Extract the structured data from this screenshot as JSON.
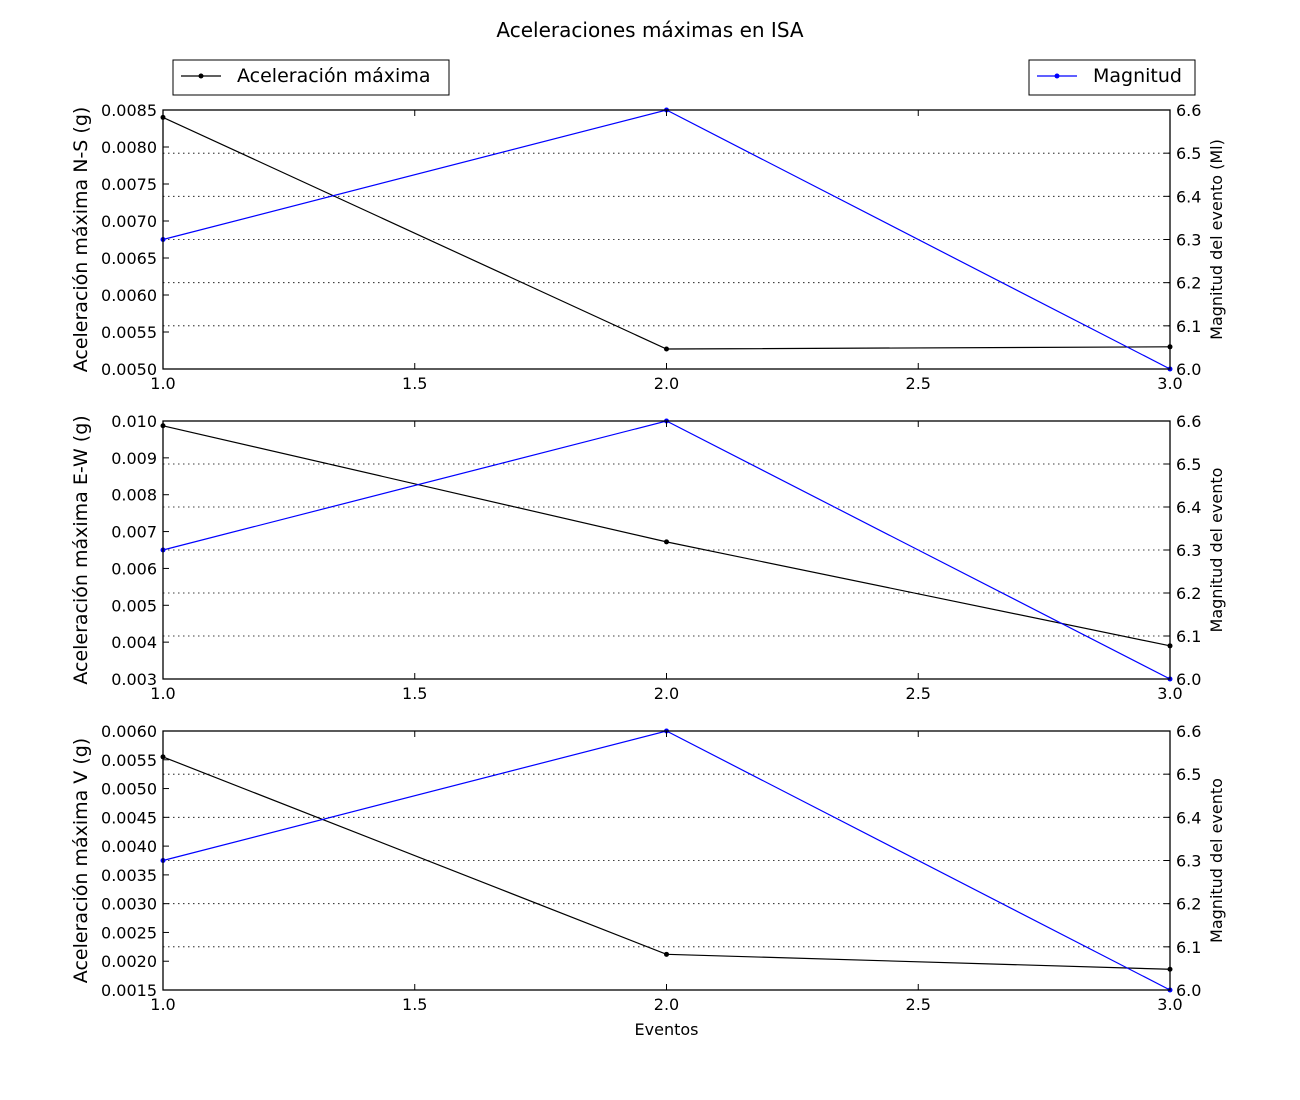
{
  "chart_data": {
    "title": "Aceleraciones máximas en ISA",
    "xlabel": "Eventos",
    "legend": {
      "left": "Aceleración máxima",
      "right": "Magnitud"
    },
    "colors": {
      "acceleration": "#000000",
      "magnitude": "#0000ff"
    },
    "panels": [
      {
        "type": "line",
        "ylabel_left": "Aceleración máxima N-S (g)",
        "ylabel_right": "Magnitud del evento (Ml)",
        "x": [
          1,
          2,
          3
        ],
        "xlim": [
          1.0,
          3.0
        ],
        "xticks": [
          "1.0",
          "1.5",
          "2.0",
          "2.5",
          "3.0"
        ],
        "ylim_left": [
          0.005,
          0.0085
        ],
        "yticks_left": [
          "0.0050",
          "0.0055",
          "0.0060",
          "0.0065",
          "0.0070",
          "0.0075",
          "0.0080",
          "0.0085"
        ],
        "ylim_right": [
          6.0,
          6.6
        ],
        "yticks_right": [
          "6.0",
          "6.1",
          "6.2",
          "6.3",
          "6.4",
          "6.5",
          "6.6"
        ],
        "series": [
          {
            "name": "Aceleración máxima",
            "axis": "left",
            "values": [
              0.0084,
              0.00527,
              0.0053
            ]
          },
          {
            "name": "Magnitud",
            "axis": "right",
            "values": [
              6.3,
              6.6,
              6.0
            ]
          }
        ]
      },
      {
        "type": "line",
        "ylabel_left": "Aceleración máxima E-W (g)",
        "ylabel_right": "Magnitud del evento",
        "x": [
          1,
          2,
          3
        ],
        "xlim": [
          1.0,
          3.0
        ],
        "xticks": [
          "1.0",
          "1.5",
          "2.0",
          "2.5",
          "3.0"
        ],
        "ylim_left": [
          0.003,
          0.01
        ],
        "yticks_left": [
          "0.003",
          "0.004",
          "0.005",
          "0.006",
          "0.007",
          "0.008",
          "0.009",
          "0.010"
        ],
        "ylim_right": [
          6.0,
          6.6
        ],
        "yticks_right": [
          "6.0",
          "6.1",
          "6.2",
          "6.3",
          "6.4",
          "6.5",
          "6.6"
        ],
        "series": [
          {
            "name": "Aceleración máxima",
            "axis": "left",
            "values": [
              0.00987,
              0.00672,
              0.0039
            ]
          },
          {
            "name": "Magnitud",
            "axis": "right",
            "values": [
              6.3,
              6.6,
              6.0
            ]
          }
        ]
      },
      {
        "type": "line",
        "ylabel_left": "Aceleración máxima V (g)",
        "ylabel_right": "Magnitud del evento",
        "x": [
          1,
          2,
          3
        ],
        "xlim": [
          1.0,
          3.0
        ],
        "xticks": [
          "1.0",
          "1.5",
          "2.0",
          "2.5",
          "3.0"
        ],
        "ylim_left": [
          0.0015,
          0.006
        ],
        "yticks_left": [
          "0.0015",
          "0.0020",
          "0.0025",
          "0.0030",
          "0.0035",
          "0.0040",
          "0.0045",
          "0.0050",
          "0.0055",
          "0.0060"
        ],
        "ylim_right": [
          6.0,
          6.6
        ],
        "yticks_right": [
          "6.0",
          "6.1",
          "6.2",
          "6.3",
          "6.4",
          "6.5",
          "6.6"
        ],
        "series": [
          {
            "name": "Aceleración máxima",
            "axis": "left",
            "values": [
              0.00555,
              0.00212,
              0.00186
            ]
          },
          {
            "name": "Magnitud",
            "axis": "right",
            "values": [
              6.3,
              6.6,
              6.0
            ]
          }
        ]
      }
    ]
  }
}
